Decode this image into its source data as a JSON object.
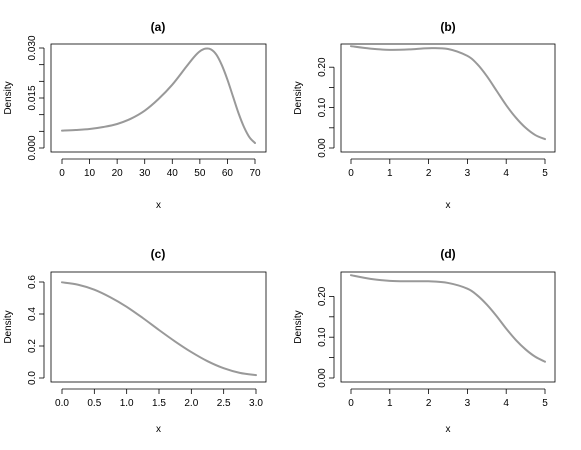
{
  "chart_data": [
    {
      "type": "line",
      "title": "(a)",
      "xlabel": "x",
      "ylabel": "Density",
      "xlim": [
        0,
        70
      ],
      "ylim": [
        0,
        0.03
      ],
      "xticks": [
        0,
        10,
        20,
        30,
        40,
        50,
        60,
        70
      ],
      "xtick_labels": [
        "0",
        "10",
        "20",
        "30",
        "40",
        "50",
        "60",
        "70"
      ],
      "yticks": [
        0.0,
        0.005,
        0.01,
        0.015,
        0.02,
        0.025,
        0.03
      ],
      "ytick_labels": [
        "0.000",
        "",
        "",
        "0.015",
        "",
        "",
        "0.030"
      ],
      "line_color": "#999999",
      "series": [
        {
          "x": [
            0,
            5,
            10,
            15,
            20,
            25,
            30,
            35,
            40,
            45,
            48,
            50,
            52,
            54,
            56,
            58,
            60,
            62,
            64,
            66,
            68,
            70
          ],
          "y": [
            0.0052,
            0.0054,
            0.0057,
            0.0063,
            0.0072,
            0.0088,
            0.0112,
            0.0147,
            0.019,
            0.0243,
            0.0274,
            0.029,
            0.0298,
            0.0296,
            0.028,
            0.0248,
            0.0205,
            0.0155,
            0.0105,
            0.0063,
            0.0032,
            0.0015
          ]
        }
      ]
    },
    {
      "type": "line",
      "title": "(b)",
      "xlabel": "x",
      "ylabel": "Density",
      "xlim": [
        0,
        5
      ],
      "ylim": [
        0,
        0.25
      ],
      "xticks": [
        0,
        1,
        2,
        3,
        4,
        5
      ],
      "xtick_labels": [
        "0",
        "1",
        "2",
        "3",
        "4",
        "5"
      ],
      "yticks": [
        0.0,
        0.05,
        0.1,
        0.15,
        0.2
      ],
      "ytick_labels": [
        "0.00",
        "",
        "0.10",
        "",
        "0.20"
      ],
      "line_color": "#999999",
      "series": [
        {
          "x": [
            0,
            0.5,
            1,
            1.5,
            2,
            2.5,
            3,
            3.25,
            3.5,
            3.75,
            4,
            4.25,
            4.5,
            4.75,
            5
          ],
          "y": [
            0.252,
            0.246,
            0.243,
            0.244,
            0.247,
            0.245,
            0.228,
            0.208,
            0.178,
            0.142,
            0.106,
            0.075,
            0.05,
            0.032,
            0.022
          ]
        }
      ]
    },
    {
      "type": "line",
      "title": "(c)",
      "xlabel": "x",
      "ylabel": "Density",
      "xlim": [
        0,
        3
      ],
      "ylim": [
        0,
        0.6
      ],
      "xticks": [
        0,
        0.5,
        1,
        1.5,
        2,
        2.5,
        3
      ],
      "xtick_labels": [
        "0.0",
        "0.5",
        "1.0",
        "1.5",
        "2.0",
        "2.5",
        "3.0"
      ],
      "yticks": [
        0.0,
        0.2,
        0.4,
        0.6
      ],
      "ytick_labels": [
        "0.0",
        "0.2",
        "0.4",
        "0.6"
      ],
      "line_color": "#999999",
      "series": [
        {
          "x": [
            0,
            0.25,
            0.5,
            0.75,
            1,
            1.25,
            1.5,
            1.75,
            2,
            2.25,
            2.5,
            2.75,
            3
          ],
          "y": [
            0.598,
            0.583,
            0.552,
            0.504,
            0.445,
            0.375,
            0.3,
            0.228,
            0.162,
            0.105,
            0.061,
            0.032,
            0.018
          ]
        }
      ]
    },
    {
      "type": "line",
      "title": "(d)",
      "xlabel": "x",
      "ylabel": "Density",
      "xlim": [
        0,
        5
      ],
      "ylim": [
        0,
        0.25
      ],
      "xticks": [
        0,
        1,
        2,
        3,
        4,
        5
      ],
      "xtick_labels": [
        "0",
        "1",
        "2",
        "3",
        "4",
        "5"
      ],
      "yticks": [
        0.0,
        0.05,
        0.1,
        0.15,
        0.2
      ],
      "ytick_labels": [
        "0.00",
        "",
        "0.10",
        "",
        "0.20"
      ],
      "line_color": "#999999",
      "series": [
        {
          "x": [
            0,
            0.5,
            1,
            1.5,
            2,
            2.5,
            3,
            3.25,
            3.5,
            3.75,
            4,
            4.25,
            4.5,
            4.75,
            5
          ],
          "y": [
            0.252,
            0.243,
            0.238,
            0.237,
            0.237,
            0.233,
            0.219,
            0.203,
            0.18,
            0.152,
            0.121,
            0.093,
            0.07,
            0.052,
            0.04
          ]
        }
      ]
    }
  ]
}
